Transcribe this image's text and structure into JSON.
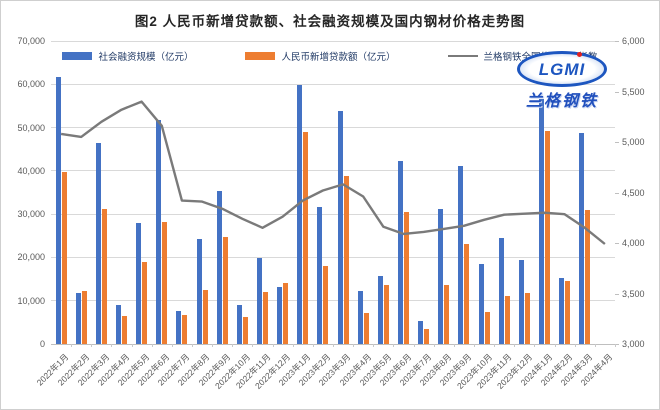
{
  "title": "图2 人民币新增贷款额、社会融资规模及国内钢材价格走势图",
  "legend": [
    {
      "label": "社会融资规模（亿元）",
      "color": "#4472C4",
      "type": "bar"
    },
    {
      "label": "人民币新增贷款额（亿元）",
      "color": "#ED7D31",
      "type": "bar"
    },
    {
      "label": "兰格钢铁全国绝对价格指数",
      "color": "#7a7a7a",
      "type": "line"
    }
  ],
  "logo": {
    "text": "LGMI",
    "subtext": "兰格钢铁"
  },
  "chart_data": {
    "type": "bar+line",
    "title": "图2 人民币新增贷款额、社会融资规模及国内钢材价格走势图",
    "categories": [
      "2022年1月",
      "2022年2月",
      "2022年3月",
      "2022年4月",
      "2022年5月",
      "2022年6月",
      "2022年7月",
      "2022年8月",
      "2022年9月",
      "2022年10月",
      "2022年11月",
      "2022年12月",
      "2023年1月",
      "2023年2月",
      "2023年3月",
      "2023年4月",
      "2023年5月",
      "2023年6月",
      "2023年7月",
      "2023年8月",
      "2023年9月",
      "2023年10月",
      "2023年11月",
      "2023年12月",
      "2024年1月",
      "2024年2月",
      "2024年3月",
      "2024年4月"
    ],
    "series": [
      {
        "name": "社会融资规模（亿元）",
        "type": "bar",
        "axis": "left",
        "color": "#4472C4",
        "values": [
          61700,
          11900,
          46500,
          9100,
          27900,
          51700,
          7600,
          24300,
          35300,
          9100,
          19900,
          13100,
          59800,
          31600,
          53800,
          12200,
          15600,
          42200,
          5300,
          31200,
          41200,
          18500,
          24500,
          19400,
          56500,
          15200,
          48700,
          null
        ]
      },
      {
        "name": "人民币新增贷款额（亿元）",
        "type": "bar",
        "axis": "left",
        "color": "#ED7D31",
        "values": [
          39800,
          12300,
          31300,
          6500,
          18900,
          28100,
          6800,
          12500,
          24700,
          6200,
          12100,
          14000,
          49000,
          18100,
          38900,
          7200,
          13600,
          30500,
          3500,
          13600,
          23100,
          7400,
          11000,
          11700,
          49200,
          14500,
          30900,
          null
        ]
      },
      {
        "name": "兰格钢铁全国绝对价格指数",
        "type": "line",
        "axis": "right",
        "color": "#7a7a7a",
        "values": [
          5080,
          5050,
          5200,
          5320,
          5400,
          5160,
          4420,
          4410,
          4340,
          4240,
          4150,
          4260,
          4420,
          4520,
          4580,
          4460,
          4160,
          4090,
          4110,
          4140,
          4170,
          4230,
          4280,
          4290,
          4300,
          4285,
          4150,
          3990
        ]
      }
    ],
    "left_axis": {
      "min": 0,
      "max": 70000,
      "step": 10000,
      "labels": [
        "0",
        "10,000",
        "20,000",
        "30,000",
        "40,000",
        "50,000",
        "60,000",
        "70,000"
      ]
    },
    "right_axis": {
      "min": 3000,
      "max": 6000,
      "step": 500,
      "labels": [
        "3,000",
        "3,500",
        "4,000",
        "4,500",
        "5,000",
        "5,500",
        "6,000"
      ]
    },
    "grid": true,
    "legend_position": "top"
  }
}
